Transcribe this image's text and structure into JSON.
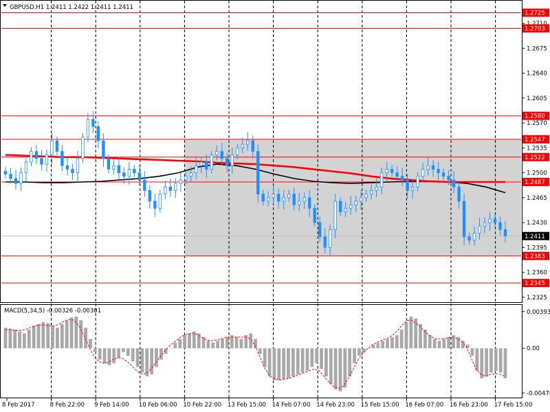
{
  "header": {
    "symbol_text": "GBPUSD,H1  1.2411 1.2422 1.2411 1.2411"
  },
  "macd": {
    "label": "MACD(5,34,5) -0.00326 -0.00301",
    "axis_labels": [
      "0.00393",
      "0.00",
      "-0.00478"
    ],
    "axis_values": [
      0.00393,
      0.0,
      -0.00478
    ]
  },
  "colors": {
    "level_line": "#ff0000",
    "candle": "#1e90ff",
    "ma_fast": "#ff0000",
    "ma_slow": "#000000",
    "zone_fill": "#d3d3d3",
    "macd_hist": "#a9a9a9",
    "macd_signal": "#ff0000"
  },
  "chart_data": {
    "type": "candlestick",
    "symbol": "GBPUSD",
    "timeframe": "H1",
    "ohlc_current": {
      "open": 1.2411,
      "high": 1.2422,
      "low": 1.2411,
      "close": 1.2411
    },
    "ylim": [
      1.232,
      1.274
    ],
    "price_ticks": [
      "1.2710",
      "1.2675",
      "1.2640",
      "1.2605",
      "1.2570",
      "1.2535",
      "1.2500",
      "1.2465",
      "1.2430",
      "1.2395",
      "1.2360",
      "1.2325"
    ],
    "price_tick_values": [
      1.271,
      1.2675,
      1.264,
      1.2605,
      1.257,
      1.2535,
      1.25,
      1.2465,
      1.243,
      1.2395,
      1.236,
      1.2325
    ],
    "level_labels": [
      "1.2725",
      "1.2703",
      "1.2580",
      "1.2547",
      "1.2522",
      "1.2487",
      "1.2383",
      "1.2345"
    ],
    "level_values": [
      1.2725,
      1.2703,
      1.258,
      1.2547,
      1.2522,
      1.2487,
      1.2383,
      1.2345
    ],
    "current_price_label": "1.2411",
    "current_price": 1.2411,
    "zone": {
      "from_date": "10 Feb 22:00",
      "low": 1.2383,
      "high": 1.2547
    },
    "time_labels": [
      "8 Feb 2017",
      "8 Feb 22:00",
      "9 Feb 14:00",
      "10 Feb 06:00",
      "10 Feb 22:00",
      "13 Feb 15:00",
      "14 Feb 07:00",
      "14 Feb 23:00",
      "15 Feb 15:00",
      "16 Feb 07:00",
      "16 Feb 23:00",
      "17 Feb 15:00"
    ],
    "closes": [
      1.2498,
      1.2492,
      1.2485,
      1.25,
      1.2515,
      1.253,
      1.252,
      1.2512,
      1.2525,
      1.2545,
      1.253,
      1.251,
      1.2505,
      1.25,
      1.252,
      1.255,
      1.2575,
      1.2565,
      1.2545,
      1.252,
      1.2505,
      1.251,
      1.25,
      1.2495,
      1.2505,
      1.25,
      1.249,
      1.2475,
      1.246,
      1.245,
      1.247,
      1.248,
      1.2475,
      1.2485,
      1.249,
      1.2495,
      1.25,
      1.251,
      1.2515,
      1.2505,
      1.2525,
      1.253,
      1.252,
      1.251,
      1.2525,
      1.2535,
      1.254,
      1.2545,
      1.253,
      1.247,
      1.246,
      1.2465,
      1.247,
      1.246,
      1.2465,
      1.247,
      1.2455,
      1.246,
      1.2465,
      1.245,
      1.243,
      1.241,
      1.2395,
      1.242,
      1.246,
      1.2445,
      1.245,
      1.2455,
      1.246,
      1.2465,
      1.247,
      1.2475,
      1.248,
      1.25,
      1.2505,
      1.25,
      1.2495,
      1.249,
      1.2475,
      1.248,
      1.2495,
      1.2505,
      1.251,
      1.2505,
      1.25,
      1.2495,
      1.249,
      1.248,
      1.246,
      1.241,
      1.2405,
      1.2415,
      1.2425,
      1.243,
      1.2435,
      1.243,
      1.242,
      1.2411
    ],
    "ma_fast": [
      1.2525,
      1.2524,
      1.2523,
      1.2522,
      1.2522,
      1.2521,
      1.252,
      1.2519,
      1.2518,
      1.2517,
      1.2516,
      1.2514,
      1.2513,
      1.2512,
      1.251,
      1.2508,
      1.2505,
      1.2502,
      1.2499,
      1.2495,
      1.2492,
      1.249,
      1.2488,
      1.2487,
      1.2487,
      1.2487,
      1.2487
    ],
    "ma_slow": [
      1.2487,
      1.2487,
      1.2486,
      1.2486,
      1.2487,
      1.2488,
      1.249,
      1.2492,
      1.2495,
      1.25,
      1.2508,
      1.2512,
      1.251,
      1.2505,
      1.2498,
      1.2492,
      1.2488,
      1.2486,
      1.2485,
      1.2486,
      1.2487,
      1.2488,
      1.2488,
      1.2487,
      1.2485,
      1.248,
      1.2472
    ],
    "macd_hist": [
      0.0022,
      0.0021,
      0.002,
      0.0018,
      0.0016,
      0.002,
      0.0024,
      0.0026,
      0.0028,
      0.0027,
      0.0024,
      0.0022,
      0.0026,
      0.003,
      0.0033,
      0.0034,
      0.003,
      0.0022,
      0.001,
      -0.0004,
      -0.0012,
      -0.0016,
      -0.0018,
      -0.0016,
      -0.001,
      -0.0004,
      -0.0008,
      -0.0014,
      -0.002,
      -0.0026,
      -0.003,
      -0.0028,
      -0.002,
      -0.0012,
      -0.0006,
      0.0,
      0.0006,
      0.001,
      0.0014,
      0.0016,
      0.0018,
      0.0016,
      0.0012,
      0.0008,
      0.0006,
      0.0008,
      0.001,
      0.0012,
      0.0014,
      0.0012,
      0.001,
      0.0014,
      0.0016,
      0.001,
      -0.0006,
      -0.002,
      -0.003,
      -0.0034,
      -0.0034,
      -0.0033,
      -0.0032,
      -0.003,
      -0.0028,
      -0.0026,
      -0.0024,
      -0.002,
      -0.0016,
      -0.0022,
      -0.003,
      -0.0038,
      -0.0044,
      -0.0046,
      -0.0042,
      -0.003,
      -0.0016,
      -0.0008,
      -0.0004,
      0.0,
      0.0004,
      0.0006,
      0.0008,
      0.001,
      0.0012,
      0.0014,
      0.002,
      0.0028,
      0.0034,
      0.0032,
      0.0026,
      0.002,
      0.0014,
      0.001,
      0.0008,
      0.001,
      0.0012,
      0.0014,
      0.0012,
      0.0008,
      0.0004,
      -0.0008,
      -0.0024,
      -0.0032,
      -0.003,
      -0.0026,
      -0.0024,
      -0.0026,
      -0.0032
    ],
    "macd_signal": [
      0.002,
      0.002,
      0.0019,
      0.0019,
      0.002,
      0.0022,
      0.0024,
      0.0025,
      0.0025,
      0.0024,
      0.0024,
      0.0026,
      0.0029,
      0.0031,
      0.003,
      0.0024,
      0.0014,
      0.0002,
      -0.0008,
      -0.0014,
      -0.0016,
      -0.0015,
      -0.0012,
      -0.001,
      -0.0011,
      -0.0015,
      -0.002,
      -0.0025,
      -0.0028,
      -0.0026,
      -0.002,
      -0.0013,
      -0.0006,
      0.0,
      0.0005,
      0.0009,
      0.0013,
      0.0015,
      0.0016,
      0.0015,
      0.0012,
      0.0009,
      0.0008,
      0.0009,
      0.001,
      0.0012,
      0.0012,
      0.0012,
      0.0012,
      0.0012,
      0.001,
      0.0002,
      -0.001,
      -0.0022,
      -0.003,
      -0.0033,
      -0.0034,
      -0.0033,
      -0.0032,
      -0.003,
      -0.0028,
      -0.0026,
      -0.0024,
      -0.0022,
      -0.0024,
      -0.003,
      -0.0036,
      -0.0041,
      -0.0043,
      -0.004,
      -0.0032,
      -0.0022,
      -0.0012,
      -0.0005,
      0.0,
      0.0004,
      0.0007,
      0.0009,
      0.0011,
      0.0014,
      0.0019,
      0.0025,
      0.003,
      0.003,
      0.0026,
      0.0021,
      0.0016,
      0.0012,
      0.001,
      0.001,
      0.0011,
      0.0012,
      0.0011,
      0.0008,
      0.0002,
      -0.001,
      -0.0022,
      -0.0028,
      -0.003,
      -0.0028,
      -0.0027,
      -0.0028,
      -0.003
    ]
  }
}
